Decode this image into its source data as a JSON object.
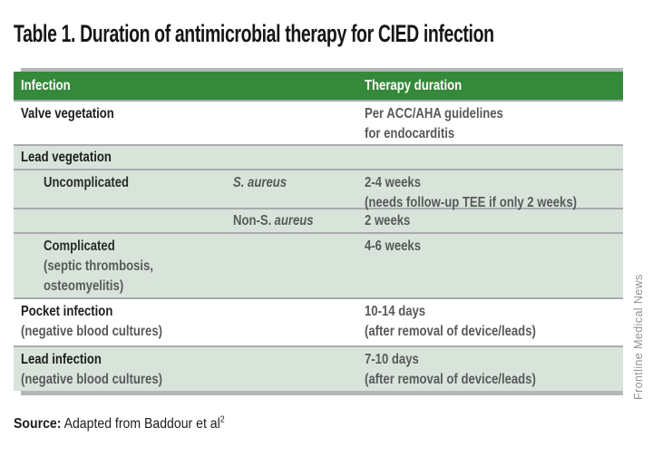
{
  "title": "Table 1. Duration of antimicrobial therapy for CIED infection",
  "columns": {
    "infection": "Infection",
    "therapy_duration": "Therapy duration"
  },
  "rows": {
    "valve": {
      "label": "Valve vegetation",
      "duration1": "Per ACC/AHA guidelines",
      "duration2": "for endocarditis"
    },
    "lead_vegetation": {
      "label": "Lead vegetation"
    },
    "uncomplicated": {
      "label": "Uncomplicated",
      "organism": "S. aureus",
      "duration1": "2-4 weeks",
      "duration2": "(needs follow-up TEE if only 2 weeks)"
    },
    "non_s_aureus": {
      "organism_roman": "Non-S.",
      "organism_italic": "aureus",
      "duration1": "2 weeks"
    },
    "complicated": {
      "label": "Complicated",
      "label2": "(septic thrombosis,",
      "label3": "osteomyelitis)",
      "duration1": "4-6 weeks"
    },
    "pocket": {
      "label": "Pocket infection",
      "label2": "(negative blood cultures)",
      "duration1": "10-14 days",
      "duration2": "(after removal of device/leads)"
    },
    "lead_infection": {
      "label": "Lead infection",
      "label2": "(negative blood cultures)",
      "duration1": "7-10 days",
      "duration2": "(after removal of device/leads)"
    }
  },
  "source": {
    "label": "Source:",
    "text": " Adapted from Baddour et al",
    "reference_superscript": "2"
  },
  "sidebar_credit": "Frontline Medical News",
  "colors": {
    "header_green": "#35893a",
    "section_green": "#d8e4da",
    "separator_gray": "#a9abad",
    "rule_gray": "#b4b6b8",
    "text_gray": "#58595b",
    "text_black": "#1d1d1f",
    "credit_gray": "#8f9193"
  }
}
